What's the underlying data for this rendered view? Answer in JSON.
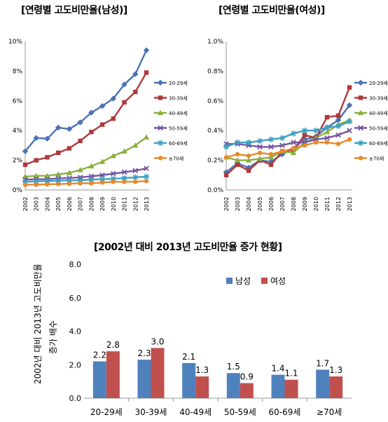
{
  "chart_data": [
    {
      "type": "line",
      "title": "[연령별 고도비만율(남성)]",
      "x": [
        "2002",
        "2003",
        "2004",
        "2005",
        "2006",
        "2007",
        "2008",
        "2009",
        "2010",
        "2011",
        "2012",
        "2013"
      ],
      "ylim": [
        0,
        10
      ],
      "yticks": [
        "0%",
        "2%",
        "4%",
        "6%",
        "8%",
        "10%"
      ],
      "grid": false,
      "legend_position": "right",
      "series": [
        {
          "name": "20-29세",
          "color": "#4a72b4",
          "marker": "diamond",
          "values": [
            2.6,
            3.5,
            3.45,
            4.2,
            4.1,
            4.55,
            5.2,
            5.65,
            6.15,
            7.1,
            7.8,
            9.4
          ]
        },
        {
          "name": "30-39세",
          "color": "#b0393c",
          "marker": "square",
          "values": [
            1.7,
            2.0,
            2.2,
            2.5,
            2.8,
            3.3,
            3.9,
            4.4,
            4.8,
            5.9,
            6.6,
            7.9
          ]
        },
        {
          "name": "40-49세",
          "color": "#8ab040",
          "marker": "triangle",
          "values": [
            0.9,
            0.95,
            0.95,
            1.05,
            1.15,
            1.35,
            1.6,
            1.9,
            2.3,
            2.6,
            3.0,
            3.55
          ]
        },
        {
          "name": "50-59세",
          "color": "#7455a0",
          "marker": "x",
          "values": [
            0.7,
            0.72,
            0.72,
            0.78,
            0.8,
            0.85,
            0.92,
            1.0,
            1.1,
            1.2,
            1.3,
            1.45
          ]
        },
        {
          "name": "60-69세",
          "color": "#3f9fbf",
          "marker": "star",
          "values": [
            0.55,
            0.58,
            0.6,
            0.62,
            0.65,
            0.65,
            0.7,
            0.72,
            0.75,
            0.8,
            0.85,
            0.9
          ]
        },
        {
          "name": "≥70세",
          "color": "#e8892b",
          "marker": "circle",
          "values": [
            0.35,
            0.36,
            0.38,
            0.4,
            0.42,
            0.45,
            0.45,
            0.5,
            0.55,
            0.55,
            0.55,
            0.6
          ]
        }
      ]
    },
    {
      "type": "line",
      "title": "[연령별 고도비만율(여성)]",
      "x": [
        "2002",
        "2003",
        "2004",
        "2005",
        "2006",
        "2007",
        "2008",
        "2009",
        "2010",
        "2011",
        "2012",
        "2013"
      ],
      "ylim": [
        0,
        1.0
      ],
      "yticks": [
        "0.0%",
        "0.2%",
        "0.4%",
        "0.6%",
        "0.8%",
        "1.0%"
      ],
      "grid": false,
      "legend_position": "right",
      "series": [
        {
          "name": "20-29세",
          "color": "#4a72b4",
          "marker": "diamond",
          "values": [
            0.12,
            0.18,
            0.15,
            0.2,
            0.19,
            0.24,
            0.28,
            0.34,
            0.36,
            0.42,
            0.47,
            0.57
          ]
        },
        {
          "name": "30-39세",
          "color": "#b0393c",
          "marker": "square",
          "values": [
            0.1,
            0.17,
            0.13,
            0.2,
            0.17,
            0.26,
            0.27,
            0.37,
            0.35,
            0.49,
            0.5,
            0.69
          ]
        },
        {
          "name": "40-49세",
          "color": "#8ab040",
          "marker": "triangle",
          "values": [
            0.22,
            0.2,
            0.2,
            0.21,
            0.22,
            0.26,
            0.25,
            0.32,
            0.35,
            0.39,
            0.44,
            0.47
          ]
        },
        {
          "name": "50-59세",
          "color": "#7455a0",
          "marker": "x",
          "values": [
            0.31,
            0.31,
            0.3,
            0.29,
            0.29,
            0.3,
            0.32,
            0.32,
            0.34,
            0.35,
            0.37,
            0.4
          ]
        },
        {
          "name": "60-69세",
          "color": "#3f9fbf",
          "marker": "star",
          "values": [
            0.29,
            0.32,
            0.32,
            0.33,
            0.34,
            0.35,
            0.38,
            0.4,
            0.4,
            0.42,
            0.43,
            0.46
          ]
        },
        {
          "name": "≥70세",
          "color": "#e8892b",
          "marker": "circle",
          "values": [
            0.22,
            0.24,
            0.23,
            0.25,
            0.24,
            0.26,
            0.28,
            0.3,
            0.32,
            0.32,
            0.31,
            0.34
          ]
        }
      ]
    },
    {
      "type": "bar",
      "title": "[2002년 대비 2013년 고도비만율 증가 현황]",
      "ylabel_line1": "2002년 대비 2013년 고도비만율",
      "ylabel_line2": "증가 배수",
      "categories": [
        "20-29세",
        "30-39세",
        "40-49세",
        "50-59세",
        "60-69세",
        "≥70세"
      ],
      "ylim": [
        0,
        8
      ],
      "yticks": [
        "0.0",
        "2.0",
        "4.0",
        "6.0",
        "8.0"
      ],
      "legend_position": "top-right",
      "series": [
        {
          "name": "남성",
          "color": "#4f81bd",
          "values": [
            2.2,
            2.3,
            2.1,
            1.5,
            1.4,
            1.7
          ],
          "labels": [
            "2.2",
            "2.3",
            "2.1",
            "1.5",
            "1.4",
            "1.7"
          ]
        },
        {
          "name": "여성",
          "color": "#c0504d",
          "values": [
            2.8,
            3.0,
            1.3,
            0.9,
            1.1,
            1.3
          ],
          "labels": [
            "2.8",
            "3.0",
            "1.3",
            "0.9",
            "1.1",
            "1.3"
          ]
        }
      ]
    }
  ]
}
